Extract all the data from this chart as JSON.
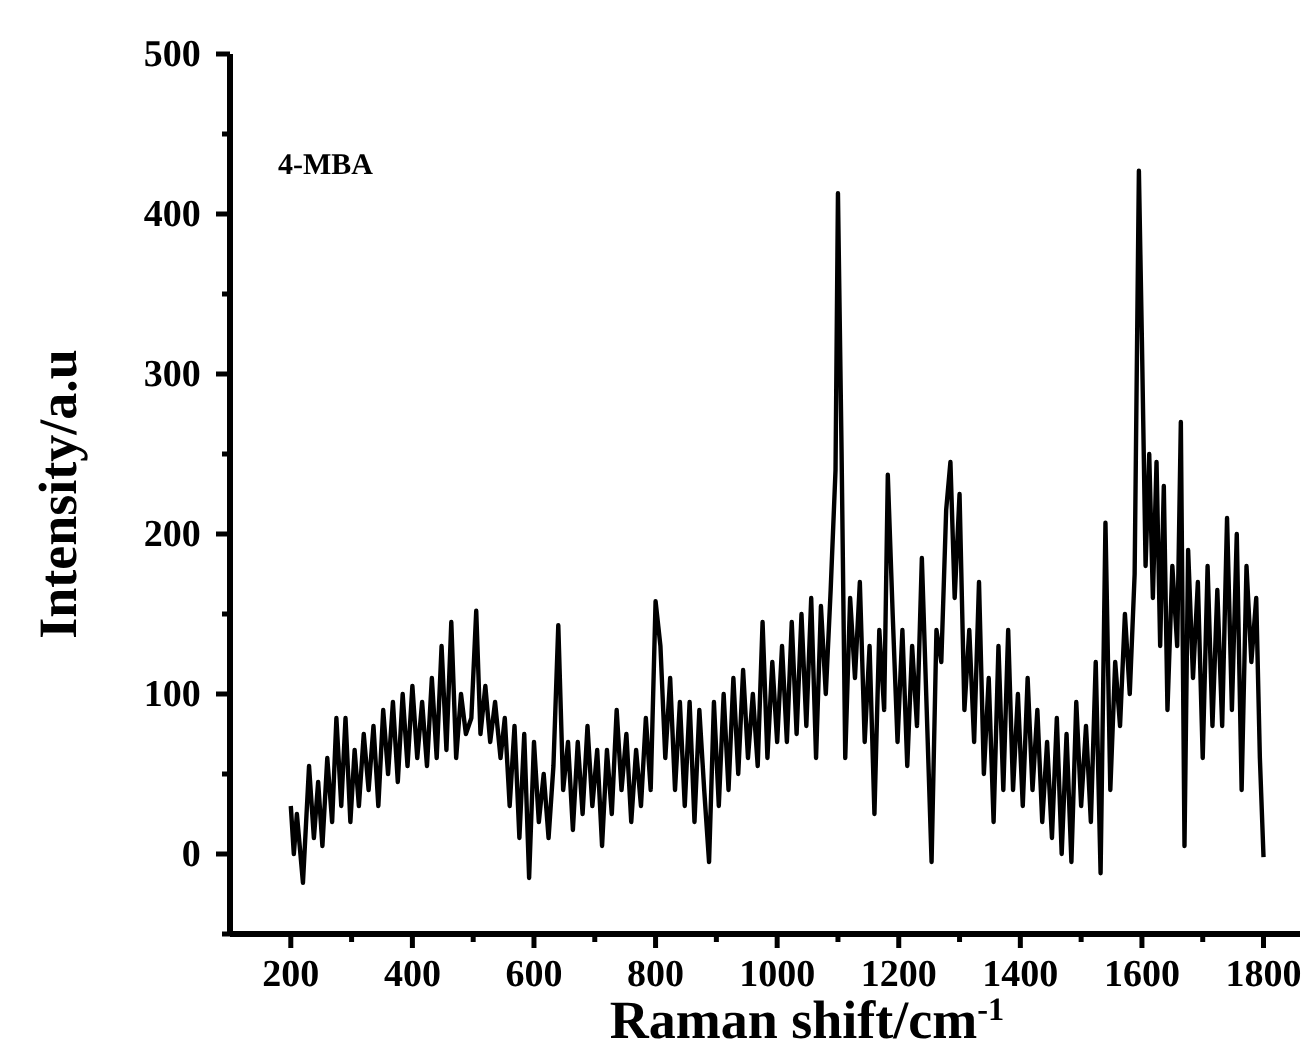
{
  "chart_data": {
    "type": "line",
    "xlabel": "Raman shift/cm$^{-1}$",
    "ylabel": "Intensity/a.u",
    "annotations": [
      "4-MBA"
    ],
    "xlim": [
      100,
      1860
    ],
    "xticks": [
      200,
      {
        "value": 300,
        "label": null
      },
      400,
      {
        "value": 500,
        "label": null
      },
      600,
      {
        "value": 700,
        "label": null
      },
      800,
      {
        "value": 900,
        "label": null
      },
      1000,
      {
        "value": 1100,
        "label": null
      },
      1200,
      {
        "value": 1300,
        "label": null
      },
      1400,
      {
        "value": 1500,
        "label": null
      },
      1600,
      {
        "value": 1700,
        "label": null
      },
      1800
    ],
    "ylim": [
      -50,
      500
    ],
    "yticks": [
      {
        "value": -50,
        "label": null
      },
      0,
      {
        "value": 50,
        "label": null
      },
      100,
      {
        "value": 150,
        "label": null
      },
      200,
      {
        "value": 250,
        "label": null
      },
      300,
      {
        "value": 350,
        "label": null
      },
      400,
      {
        "value": 450,
        "label": null
      },
      500
    ],
    "grid": false,
    "marker": "none",
    "line_style": "solid",
    "series": [
      {
        "color": "#000000",
        "x": [
          200,
          205,
          210,
          220,
          230,
          238,
          245,
          252,
          260,
          268,
          275,
          283,
          290,
          298,
          305,
          312,
          320,
          328,
          336,
          344,
          352,
          360,
          368,
          376,
          384,
          392,
          400,
          408,
          416,
          424,
          432,
          440,
          448,
          456,
          464,
          472,
          480,
          488,
          497,
          505,
          512,
          520,
          528,
          536,
          545,
          552,
          560,
          568,
          576,
          584,
          592,
          600,
          608,
          616,
          624,
          632,
          640,
          648,
          656,
          664,
          672,
          680,
          688,
          696,
          704,
          712,
          720,
          728,
          736,
          744,
          752,
          760,
          768,
          776,
          784,
          792,
          800,
          808,
          816,
          824,
          832,
          840,
          848,
          856,
          864,
          872,
          880,
          888,
          896,
          904,
          912,
          920,
          928,
          936,
          944,
          952,
          960,
          968,
          976,
          984,
          992,
          1000,
          1008,
          1016,
          1024,
          1032,
          1040,
          1048,
          1056,
          1064,
          1072,
          1080,
          1088,
          1096,
          1100,
          1106,
          1112,
          1120,
          1128,
          1136,
          1144,
          1152,
          1160,
          1168,
          1176,
          1182,
          1190,
          1198,
          1206,
          1214,
          1222,
          1230,
          1238,
          1246,
          1254,
          1262,
          1270,
          1278,
          1285,
          1292,
          1300,
          1308,
          1316,
          1324,
          1332,
          1340,
          1348,
          1356,
          1364,
          1372,
          1380,
          1388,
          1396,
          1404,
          1412,
          1420,
          1428,
          1436,
          1444,
          1452,
          1460,
          1468,
          1476,
          1484,
          1492,
          1500,
          1508,
          1516,
          1524,
          1532,
          1540,
          1548,
          1556,
          1564,
          1572,
          1580,
          1588,
          1595,
          1600,
          1606,
          1612,
          1618,
          1624,
          1630,
          1636,
          1642,
          1650,
          1658,
          1664,
          1670,
          1676,
          1684,
          1692,
          1700,
          1708,
          1716,
          1724,
          1732,
          1740,
          1748,
          1756,
          1764,
          1772,
          1780,
          1788,
          1794,
          1800
        ],
        "values": [
          30,
          0,
          25,
          -18,
          55,
          10,
          45,
          5,
          60,
          20,
          85,
          30,
          85,
          20,
          65,
          30,
          75,
          40,
          80,
          30,
          90,
          50,
          95,
          45,
          100,
          55,
          105,
          60,
          95,
          55,
          110,
          60,
          130,
          65,
          145,
          60,
          100,
          75,
          85,
          152,
          75,
          105,
          70,
          95,
          60,
          85,
          30,
          80,
          10,
          75,
          -15,
          70,
          20,
          50,
          10,
          55,
          143,
          40,
          70,
          15,
          70,
          25,
          80,
          30,
          65,
          5,
          65,
          25,
          90,
          40,
          75,
          20,
          65,
          30,
          85,
          40,
          158,
          130,
          60,
          110,
          40,
          95,
          30,
          95,
          20,
          90,
          40,
          -5,
          95,
          30,
          100,
          40,
          110,
          50,
          115,
          60,
          100,
          55,
          145,
          60,
          120,
          70,
          130,
          70,
          145,
          75,
          150,
          80,
          160,
          60,
          155,
          100,
          165,
          240,
          413,
          250,
          60,
          160,
          110,
          170,
          70,
          130,
          25,
          140,
          90,
          237,
          150,
          70,
          140,
          55,
          130,
          80,
          185,
          90,
          -5,
          140,
          120,
          215,
          245,
          160,
          225,
          90,
          140,
          70,
          170,
          50,
          110,
          20,
          130,
          40,
          140,
          40,
          100,
          30,
          110,
          40,
          90,
          20,
          70,
          10,
          85,
          0,
          75,
          -5,
          95,
          30,
          80,
          20,
          120,
          -12,
          207,
          40,
          120,
          80,
          150,
          100,
          175,
          427,
          320,
          180,
          250,
          160,
          245,
          130,
          230,
          90,
          180,
          130,
          270,
          5,
          190,
          110,
          170,
          60,
          180,
          80,
          165,
          80,
          210,
          90,
          200,
          40,
          180,
          120,
          160,
          60,
          -2
        ]
      }
    ]
  }
}
